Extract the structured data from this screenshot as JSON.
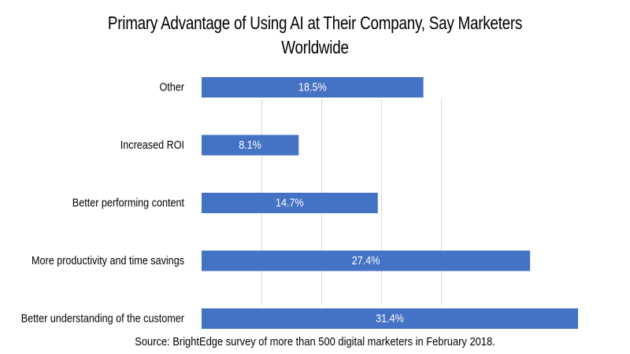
{
  "chart_data": {
    "type": "bar",
    "orientation": "horizontal",
    "title_line1": "Primary Advantage of Using AI at Their Company, Say Marketers",
    "title_line2": "Worldwide",
    "categories": [
      "Other",
      "Increased ROI",
      "Better performing content",
      "More productivity and time savings",
      "Better understanding of the customer"
    ],
    "values": [
      18.5,
      8.1,
      14.7,
      27.4,
      31.4
    ],
    "value_labels": [
      "18.5%",
      "8.1%",
      "14.7%",
      "27.4%",
      "31.4%"
    ],
    "unit": "%",
    "xlim": [
      0,
      31.4
    ],
    "gridline_values": [
      5,
      10,
      15,
      20
    ],
    "bar_color": "#4472c4",
    "grid_color": "#d9d9d9",
    "source": "Source: BrightEdge survey of more than 500 digital marketers in February 2018."
  }
}
